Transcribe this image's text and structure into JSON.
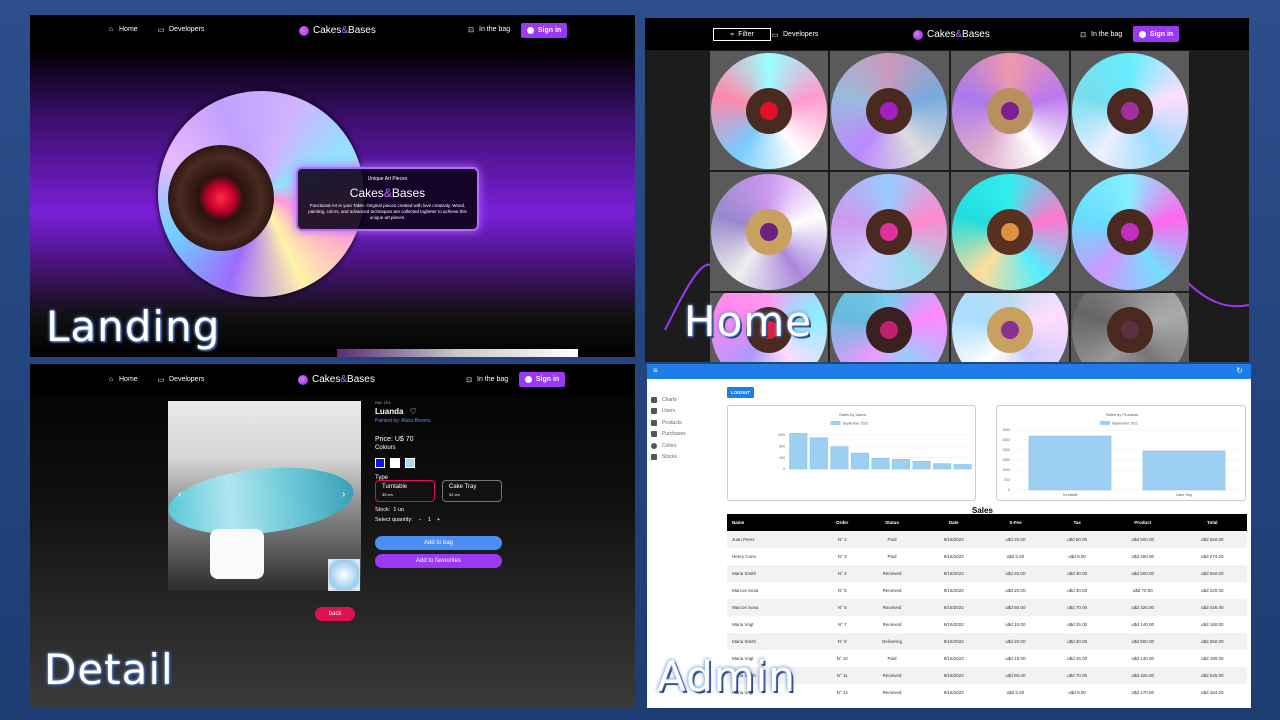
{
  "brand": {
    "name_pre": "Cakes",
    "name_amp": "&",
    "name_post": "Bases"
  },
  "nav": {
    "home": "Home",
    "developers": "Developers",
    "bag": "In the bag",
    "signin": "Sign in",
    "filter": "Filter"
  },
  "labels": {
    "landing": "Landing",
    "home": "Home",
    "detail": "Detail",
    "admin": "Admin"
  },
  "landing": {
    "kicker": "Unique Art Pieces",
    "title": "Cakes&Bases",
    "description": "Functional Art in your Table. Original pieces created with love creativity. Wood, painting, colors, and advanced techniques are collected togheter to achieve this unique art pieces."
  },
  "detail": {
    "ref": "Ref: 1E4",
    "name": "Luanda",
    "painted_by": "Painted by: Alicia Borono",
    "price": "Price: U$ 70",
    "colours_label": "Colours",
    "colours": [
      "#1010e0",
      "#ffffff",
      "#a8d8f0"
    ],
    "type_label": "Type",
    "types": [
      {
        "name": "Turntable",
        "size": "35 cm",
        "selected": true
      },
      {
        "name": "Cake Tray",
        "size": "32 cm",
        "selected": false
      }
    ],
    "stock": "Stock:  1 un",
    "quantity_label": "Select quantity:",
    "quantity_minus": "−",
    "quantity": "1",
    "quantity_plus": "+",
    "add_to_bag": "Add to bag",
    "add_to_favourites": "Add to favourites",
    "back": "back"
  },
  "admin": {
    "sidebar": [
      "Charts",
      "Users",
      "Products",
      "Purchases",
      "Colors",
      "Stocks"
    ],
    "logout": "LOGOUT",
    "sales_title": "Sales",
    "columns": [
      "Name",
      "Order",
      "Status",
      "Date",
      "S-Fee",
      "Tax",
      "Product",
      "Total"
    ],
    "rows": [
      [
        "Juan Perez",
        "N° 2",
        "Paid",
        "9/16/2022",
        "u$d 20.00",
        "u$d 50.00",
        "u$d 500.00",
        "u$d 550.00"
      ],
      [
        "Henry Cono",
        "N° 3",
        "Paid",
        "9/16/2022",
        "u$d 5.20",
        "u$d 9.00",
        "u$d 260.00",
        "u$d 274.20"
      ],
      [
        "Maria Smith",
        "N° 4",
        "Received",
        "9/16/2022",
        "u$d 20.00",
        "u$d 30.00",
        "u$d 500.00",
        "u$d 550.00"
      ],
      [
        "Marcos Sosa",
        "N° 5",
        "Received",
        "9/16/2022",
        "u$d 20.00",
        "u$d 30.00",
        "u$d 70.00",
        "u$d 120.00"
      ],
      [
        "Marcos Sosa",
        "N° 6",
        "Received",
        "9/16/2022",
        "u$d 50.00",
        "u$d 70.00",
        "u$d 325.00",
        "u$d 445.00"
      ],
      [
        "Maria Vogt",
        "N° 7",
        "Received",
        "9/16/2022",
        "u$d 15.00",
        "u$d 25.00",
        "u$d 140.00",
        "u$d 180.00"
      ],
      [
        "Maria Smith",
        "N° 9",
        "Delivering",
        "9/16/2022",
        "u$d 20.00",
        "u$d 30.00",
        "u$d 500.00",
        "u$d 550.00"
      ],
      [
        "Maria Vogt",
        "N° 10",
        "Paid",
        "9/16/2022",
        "u$d 15.00",
        "u$d 25.00",
        "u$d 140.00",
        "u$d 180.00"
      ],
      [
        "Maria Smith",
        "N° 11",
        "Received",
        "9/16/2022",
        "u$d 50.00",
        "u$d 70.00",
        "u$d 425.00",
        "u$d 545.00"
      ],
      [
        "Maria Vogt",
        "N° 12",
        "Received",
        "9/16/2022",
        "u$d 5.20",
        "u$d 9.00",
        "u$d 170.00",
        "u$d 184.20"
      ]
    ]
  },
  "chart_data": [
    {
      "type": "bar",
      "title": "Sales by Users",
      "legend": "September 2022",
      "legend_position": "top",
      "bar_color": "#9ccff2",
      "ylim": [
        0,
        1300
      ],
      "yticks": [
        0,
        400,
        800,
        1200
      ],
      "values": [
        1250,
        1100,
        780,
        560,
        380,
        340,
        270,
        190,
        160
      ]
    },
    {
      "type": "bar",
      "title": "Sales by Products",
      "legend": "September 2022",
      "legend_position": "top",
      "bar_color": "#9ccff2",
      "categories": [
        "Turntable",
        "Cake Tray"
      ],
      "values": [
        2700,
        1950
      ],
      "ylim": [
        0,
        3000
      ],
      "yticks": [
        0,
        500,
        1000,
        1500,
        2000,
        2500,
        3000
      ]
    }
  ]
}
